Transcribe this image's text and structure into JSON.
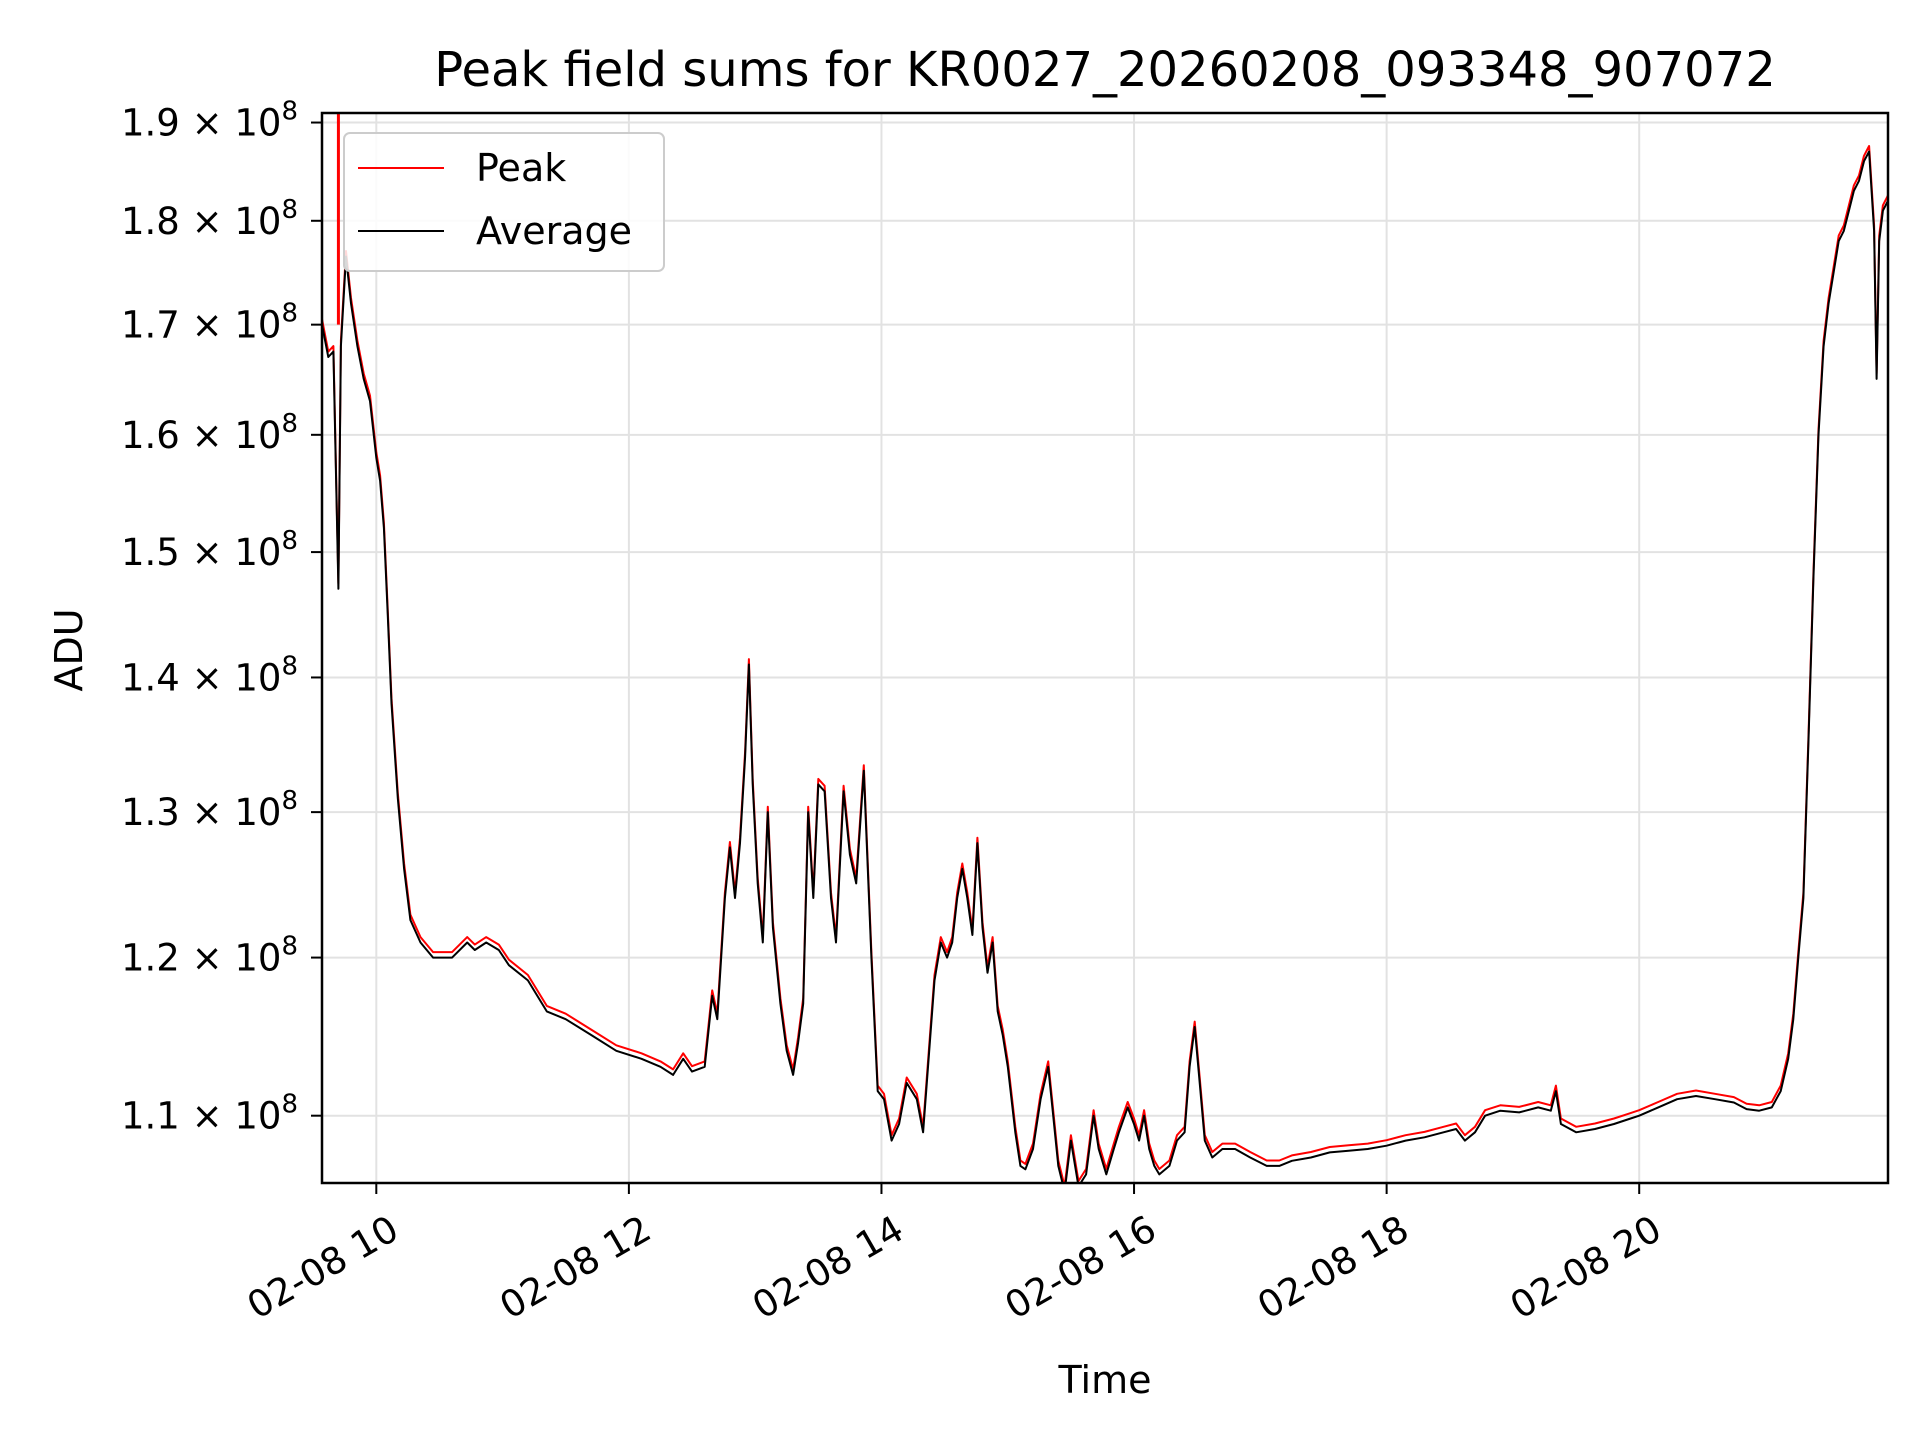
{
  "chart_data": {
    "type": "line",
    "title": "Peak field sums for KR0027_20260208_093348_907072",
    "xlabel": "Time",
    "ylabel": "ADU",
    "yscale": "log",
    "ylim": [
      106000000,
      191000000
    ],
    "xlim": [
      9.57,
      21.97
    ],
    "grid": true,
    "legend_position": "upper-left",
    "x_ticks": [
      {
        "value": 10,
        "label": "02-08 10"
      },
      {
        "value": 12,
        "label": "02-08 12"
      },
      {
        "value": 14,
        "label": "02-08 14"
      },
      {
        "value": 16,
        "label": "02-08 16"
      },
      {
        "value": 18,
        "label": "02-08 18"
      },
      {
        "value": 20,
        "label": "02-08 20"
      }
    ],
    "y_ticks": [
      {
        "value": 110000000,
        "mant": "1.1",
        "exp": "8"
      },
      {
        "value": 120000000,
        "mant": "1.2",
        "exp": "8"
      },
      {
        "value": 130000000,
        "mant": "1.3",
        "exp": "8"
      },
      {
        "value": 140000000,
        "mant": "1.4",
        "exp": "8"
      },
      {
        "value": 150000000,
        "mant": "1.5",
        "exp": "8"
      },
      {
        "value": 160000000,
        "mant": "1.6",
        "exp": "8"
      },
      {
        "value": 170000000,
        "mant": "1.7",
        "exp": "8"
      },
      {
        "value": 180000000,
        "mant": "1.8",
        "exp": "8"
      },
      {
        "value": 190000000,
        "mant": "1.9",
        "exp": "8"
      }
    ],
    "series": [
      {
        "name": "Peak",
        "color": "#ff0000"
      },
      {
        "name": "Average",
        "color": "#000000"
      }
    ],
    "average_points": [
      [
        9.57,
        170.0
      ],
      [
        9.62,
        167.0
      ],
      [
        9.66,
        167.5
      ],
      [
        9.7,
        147.0
      ],
      [
        9.72,
        168.0
      ],
      [
        9.76,
        176.5
      ],
      [
        9.8,
        172.0
      ],
      [
        9.85,
        168.0
      ],
      [
        9.9,
        165.0
      ],
      [
        9.95,
        163.0
      ],
      [
        10.0,
        158.0
      ],
      [
        10.03,
        156.0
      ],
      [
        10.06,
        152.0
      ],
      [
        10.09,
        145.0
      ],
      [
        10.12,
        138.0
      ],
      [
        10.17,
        131.0
      ],
      [
        10.22,
        126.0
      ],
      [
        10.27,
        122.5
      ],
      [
        10.35,
        121.0
      ],
      [
        10.45,
        120.0
      ],
      [
        10.6,
        120.0
      ],
      [
        10.72,
        121.0
      ],
      [
        10.78,
        120.5
      ],
      [
        10.87,
        121.0
      ],
      [
        10.97,
        120.5
      ],
      [
        11.05,
        119.5
      ],
      [
        11.2,
        118.5
      ],
      [
        11.35,
        116.5
      ],
      [
        11.5,
        116.0
      ],
      [
        11.7,
        115.0
      ],
      [
        11.9,
        114.0
      ],
      [
        12.1,
        113.5
      ],
      [
        12.25,
        113.0
      ],
      [
        12.35,
        112.5
      ],
      [
        12.43,
        113.5
      ],
      [
        12.5,
        112.7
      ],
      [
        12.6,
        113.0
      ],
      [
        12.66,
        117.5
      ],
      [
        12.7,
        116.0
      ],
      [
        12.76,
        124.0
      ],
      [
        12.8,
        127.5
      ],
      [
        12.84,
        124.0
      ],
      [
        12.88,
        127.8
      ],
      [
        12.92,
        134.0
      ],
      [
        12.95,
        141.0
      ],
      [
        12.98,
        132.0
      ],
      [
        13.02,
        125.0
      ],
      [
        13.06,
        121.0
      ],
      [
        13.1,
        130.0
      ],
      [
        13.14,
        122.0
      ],
      [
        13.2,
        117.0
      ],
      [
        13.25,
        114.0
      ],
      [
        13.3,
        112.5
      ],
      [
        13.34,
        114.5
      ],
      [
        13.38,
        117.0
      ],
      [
        13.42,
        130.0
      ],
      [
        13.46,
        124.0
      ],
      [
        13.5,
        132.0
      ],
      [
        13.55,
        131.5
      ],
      [
        13.6,
        124.0
      ],
      [
        13.64,
        121.0
      ],
      [
        13.7,
        131.5
      ],
      [
        13.75,
        127.0
      ],
      [
        13.8,
        125.0
      ],
      [
        13.86,
        133.0
      ],
      [
        13.92,
        120.0
      ],
      [
        13.97,
        111.5
      ],
      [
        14.02,
        111.0
      ],
      [
        14.08,
        108.5
      ],
      [
        14.14,
        109.5
      ],
      [
        14.2,
        112.0
      ],
      [
        14.28,
        111.0
      ],
      [
        14.33,
        109.0
      ],
      [
        14.42,
        118.5
      ],
      [
        14.47,
        121.0
      ],
      [
        14.52,
        120.0
      ],
      [
        14.56,
        121.0
      ],
      [
        14.6,
        124.0
      ],
      [
        14.64,
        126.0
      ],
      [
        14.68,
        124.0
      ],
      [
        14.72,
        121.5
      ],
      [
        14.76,
        127.8
      ],
      [
        14.8,
        122.0
      ],
      [
        14.84,
        119.0
      ],
      [
        14.88,
        121.0
      ],
      [
        14.92,
        116.5
      ],
      [
        14.96,
        115.0
      ],
      [
        15.0,
        113.0
      ],
      [
        15.06,
        109.0
      ],
      [
        15.1,
        107.0
      ],
      [
        15.14,
        106.8
      ],
      [
        15.2,
        108.0
      ],
      [
        15.26,
        111.0
      ],
      [
        15.32,
        113.0
      ],
      [
        15.36,
        110.0
      ],
      [
        15.4,
        107.0
      ],
      [
        15.45,
        105.5
      ],
      [
        15.5,
        108.5
      ],
      [
        15.56,
        105.8
      ],
      [
        15.62,
        106.5
      ],
      [
        15.68,
        110.0
      ],
      [
        15.72,
        108.0
      ],
      [
        15.78,
        106.5
      ],
      [
        15.84,
        108.0
      ],
      [
        15.88,
        109.0
      ],
      [
        15.95,
        110.5
      ],
      [
        16.0,
        109.5
      ],
      [
        16.04,
        108.5
      ],
      [
        16.08,
        110.0
      ],
      [
        16.12,
        108.0
      ],
      [
        16.16,
        107.0
      ],
      [
        16.2,
        106.5
      ],
      [
        16.28,
        107.0
      ],
      [
        16.34,
        108.5
      ],
      [
        16.4,
        109.0
      ],
      [
        16.44,
        113.0
      ],
      [
        16.48,
        115.5
      ],
      [
        16.52,
        112.0
      ],
      [
        16.56,
        108.5
      ],
      [
        16.62,
        107.5
      ],
      [
        16.7,
        108.0
      ],
      [
        16.8,
        108.0
      ],
      [
        16.92,
        107.5
      ],
      [
        17.05,
        107.0
      ],
      [
        17.15,
        107.0
      ],
      [
        17.25,
        107.3
      ],
      [
        17.4,
        107.5
      ],
      [
        17.55,
        107.8
      ],
      [
        17.7,
        107.9
      ],
      [
        17.85,
        108.0
      ],
      [
        18.0,
        108.2
      ],
      [
        18.15,
        108.5
      ],
      [
        18.3,
        108.7
      ],
      [
        18.45,
        109.0
      ],
      [
        18.55,
        109.2
      ],
      [
        18.62,
        108.5
      ],
      [
        18.7,
        109.0
      ],
      [
        18.78,
        110.0
      ],
      [
        18.9,
        110.3
      ],
      [
        19.05,
        110.2
      ],
      [
        19.2,
        110.5
      ],
      [
        19.3,
        110.3
      ],
      [
        19.34,
        111.5
      ],
      [
        19.38,
        109.5
      ],
      [
        19.5,
        109.0
      ],
      [
        19.65,
        109.2
      ],
      [
        19.8,
        109.5
      ],
      [
        19.92,
        109.8
      ],
      [
        20.0,
        110.0
      ],
      [
        20.15,
        110.5
      ],
      [
        20.3,
        111.0
      ],
      [
        20.45,
        111.2
      ],
      [
        20.6,
        111.0
      ],
      [
        20.75,
        110.8
      ],
      [
        20.85,
        110.4
      ],
      [
        20.95,
        110.3
      ],
      [
        21.05,
        110.5
      ],
      [
        21.12,
        111.5
      ],
      [
        21.18,
        113.5
      ],
      [
        21.22,
        116.0
      ],
      [
        21.26,
        120.0
      ],
      [
        21.3,
        124.0
      ],
      [
        21.34,
        135.0
      ],
      [
        21.38,
        148.0
      ],
      [
        21.42,
        160.0
      ],
      [
        21.46,
        168.0
      ],
      [
        21.5,
        172.0
      ],
      [
        21.54,
        175.0
      ],
      [
        21.58,
        178.0
      ],
      [
        21.62,
        179.0
      ],
      [
        21.66,
        181.0
      ],
      [
        21.7,
        183.0
      ],
      [
        21.74,
        184.0
      ],
      [
        21.78,
        186.0
      ],
      [
        21.82,
        187.0
      ],
      [
        21.86,
        179.0
      ],
      [
        21.88,
        165.0
      ],
      [
        21.9,
        178.0
      ],
      [
        21.93,
        181.0
      ],
      [
        21.97,
        182.0
      ]
    ],
    "peak_offset_fraction": 0.003,
    "peak_spike": {
      "x": 9.7,
      "y": 191000000
    }
  }
}
